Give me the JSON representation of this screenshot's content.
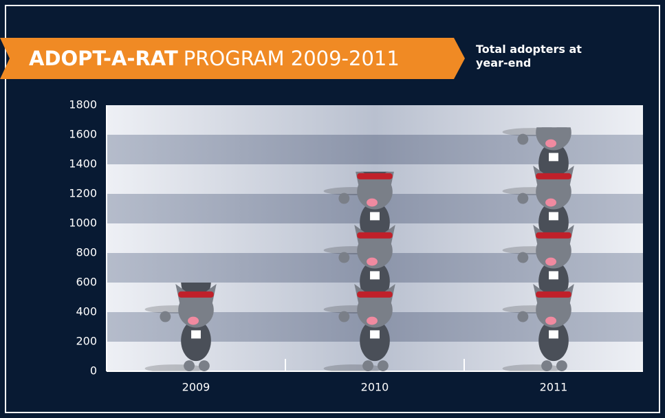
{
  "chart_data": {
    "type": "pictograph",
    "title_highlight": "ADOPT-A-RAT",
    "title": "PROGRAM 2009-2011",
    "subtitle": "Total adopters at year-end",
    "categories": [
      "2009",
      "2010",
      "2011"
    ],
    "values": [
      600,
      1350,
      1650
    ],
    "color": "#7a7f88",
    "ylim": [
      0,
      1800
    ],
    "yticks": [
      0,
      200,
      400,
      600,
      800,
      1000,
      1200,
      1400,
      1600,
      1800
    ],
    "grid": true
  }
}
